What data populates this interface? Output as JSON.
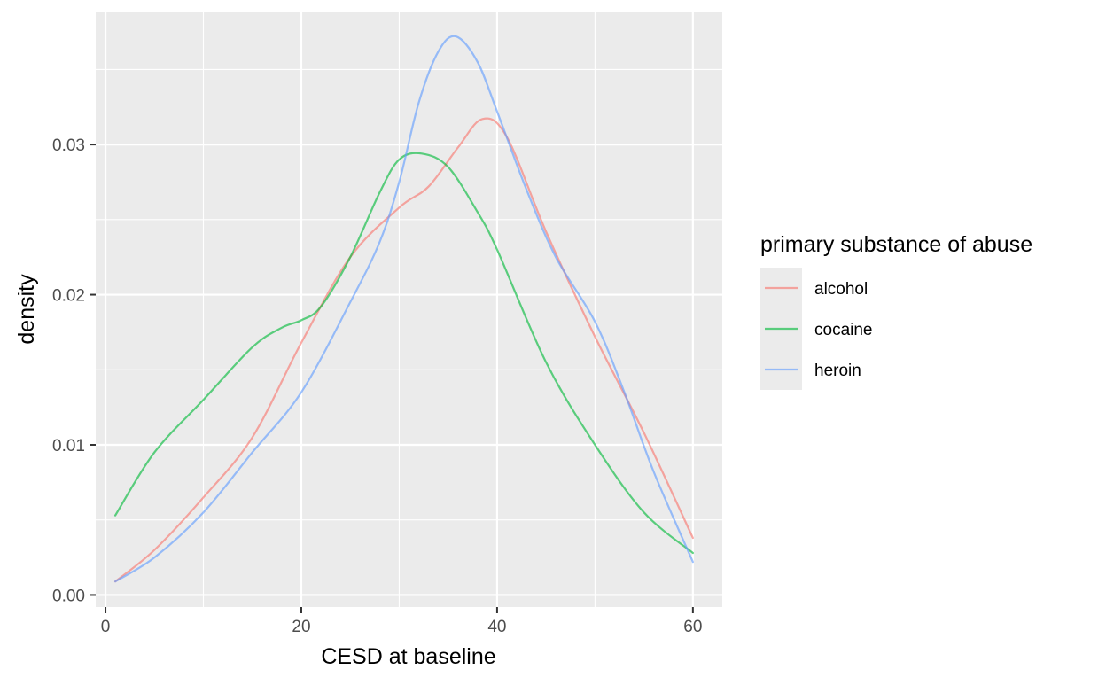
{
  "chart_data": {
    "type": "line",
    "xlabel": "CESD at baseline",
    "ylabel": "density",
    "xlim": [
      -1,
      63
    ],
    "ylim": [
      -0.0008,
      0.0388
    ],
    "x_ticks": [
      0,
      20,
      40,
      60
    ],
    "x_tick_labels": [
      "0",
      "20",
      "40",
      "60"
    ],
    "y_ticks": [
      0,
      0.01,
      0.02,
      0.03
    ],
    "y_tick_labels": [
      "0.00",
      "0.01",
      "0.02",
      "0.03"
    ],
    "grid": true,
    "legend": {
      "title": "primary substance of abuse",
      "placement": "right"
    },
    "series": [
      {
        "name": "alcohol",
        "color": "#F8766D",
        "x": [
          1,
          5,
          10,
          15,
          20,
          25,
          30,
          33,
          36,
          38.5,
          41,
          45,
          50,
          55,
          60
        ],
        "y": [
          0.0009,
          0.003,
          0.0065,
          0.0105,
          0.0168,
          0.0225,
          0.0258,
          0.0272,
          0.0298,
          0.0317,
          0.0305,
          0.0242,
          0.0172,
          0.0108,
          0.0038
        ]
      },
      {
        "name": "cocaine",
        "color": "#00BA38",
        "x": [
          1,
          5,
          10,
          15,
          18,
          20,
          22,
          25,
          28,
          30,
          32.3,
          35,
          38,
          40,
          45,
          50,
          55,
          60
        ],
        "y": [
          0.0053,
          0.0095,
          0.013,
          0.0165,
          0.0178,
          0.0183,
          0.0192,
          0.0225,
          0.0268,
          0.029,
          0.0294,
          0.0285,
          0.0255,
          0.023,
          0.0155,
          0.01,
          0.0055,
          0.0028
        ]
      },
      {
        "name": "heroin",
        "color": "#619CFF",
        "x": [
          1,
          5,
          10,
          15,
          20,
          25,
          28,
          30,
          32,
          34,
          35.8,
          38,
          40,
          43,
          46,
          50,
          53,
          56,
          60
        ],
        "y": [
          0.0009,
          0.0025,
          0.0055,
          0.0095,
          0.0135,
          0.0195,
          0.0235,
          0.0275,
          0.0328,
          0.0362,
          0.0372,
          0.0355,
          0.0322,
          0.027,
          0.0225,
          0.0182,
          0.0135,
          0.0082,
          0.0022
        ]
      }
    ]
  }
}
